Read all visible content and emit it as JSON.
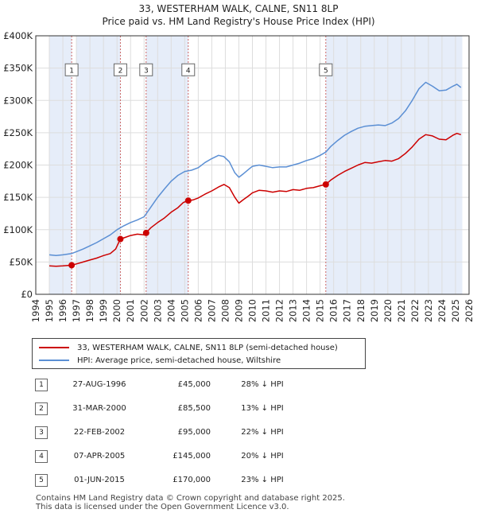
{
  "title_line1": "33, WESTERHAM WALK, CALNE, SN11 8LP",
  "title_line2": "Price paid vs. HM Land Registry's House Price Index (HPI)",
  "colors": {
    "red": "#cc0000",
    "blue": "#5b8fd4",
    "shade": "#e6edf9",
    "grid": "#dddddd",
    "marker_line": "#cc6666"
  },
  "chart_data": {
    "type": "line",
    "title": "33, WESTERHAM WALK, CALNE, SN11 8LP — Price paid vs. HM Land Registry's House Price Index (HPI)",
    "xlabel": "",
    "ylabel": "",
    "xlim": [
      1994,
      2026
    ],
    "ylim": [
      0,
      400000
    ],
    "y_ticks": [
      0,
      50000,
      100000,
      150000,
      200000,
      250000,
      300000,
      350000,
      400000
    ],
    "y_tick_labels": [
      "£0",
      "£50K",
      "£100K",
      "£150K",
      "£200K",
      "£250K",
      "£300K",
      "£350K",
      "£400K"
    ],
    "x_ticks": [
      1994,
      1995,
      1996,
      1997,
      1998,
      1999,
      2000,
      2001,
      2002,
      2003,
      2004,
      2005,
      2006,
      2007,
      2008,
      2009,
      2010,
      2011,
      2012,
      2013,
      2014,
      2015,
      2016,
      2017,
      2018,
      2019,
      2020,
      2021,
      2022,
      2023,
      2024,
      2025,
      2026
    ],
    "grid": true,
    "shaded_ranges": [
      [
        1995.0,
        1996.65
      ],
      [
        1997.0,
        2000.25
      ],
      [
        2002.15,
        2005.26
      ],
      [
        2015.42,
        2025.5
      ]
    ],
    "series": [
      {
        "name": "33, WESTERHAM WALK, CALNE, SN11 8LP (semi-detached house)",
        "color": "#cc0000",
        "x": [
          1995.0,
          1995.5,
          1996.0,
          1996.65,
          1997.0,
          1997.5,
          1998.0,
          1998.5,
          1999.0,
          1999.5,
          1999.9,
          2000.25,
          2000.6,
          2001.0,
          2001.5,
          2002.0,
          2002.15,
          2002.5,
          2003.0,
          2003.5,
          2004.0,
          2004.5,
          2004.9,
          2005.26,
          2005.6,
          2006.0,
          2006.5,
          2007.0,
          2007.5,
          2007.9,
          2008.3,
          2008.7,
          2009.0,
          2009.3,
          2009.7,
          2010.0,
          2010.5,
          2011.0,
          2011.5,
          2012.0,
          2012.5,
          2013.0,
          2013.5,
          2014.0,
          2014.5,
          2015.0,
          2015.42,
          2015.8,
          2016.3,
          2016.8,
          2017.3,
          2017.8,
          2018.3,
          2018.8,
          2019.3,
          2019.8,
          2020.3,
          2020.8,
          2021.3,
          2021.8,
          2022.3,
          2022.8,
          2023.3,
          2023.8,
          2024.3,
          2024.8,
          2025.1,
          2025.4
        ],
        "values": [
          44000,
          43500,
          44000,
          45000,
          47000,
          50000,
          53000,
          56000,
          60000,
          63000,
          70000,
          85500,
          88000,
          91000,
          93000,
          92000,
          95000,
          103000,
          111000,
          118000,
          127000,
          134000,
          142000,
          145000,
          146000,
          149000,
          155000,
          160000,
          166000,
          170000,
          165000,
          150000,
          141000,
          146000,
          152000,
          157000,
          161000,
          160000,
          158000,
          160000,
          159000,
          162000,
          161000,
          164000,
          165000,
          168000,
          170000,
          177000,
          184000,
          190000,
          195000,
          200000,
          204000,
          203000,
          205000,
          207000,
          206000,
          210000,
          218000,
          228000,
          240000,
          247000,
          245000,
          240000,
          239000,
          246000,
          249000,
          247000
        ]
      },
      {
        "name": "HPI: Average price, semi-detached house, Wiltshire",
        "color": "#5b8fd4",
        "x": [
          1995.0,
          1995.5,
          1996.0,
          1996.65,
          1997.0,
          1997.5,
          1998.0,
          1998.5,
          1999.0,
          1999.5,
          2000.0,
          2000.5,
          2001.0,
          2001.5,
          2002.0,
          2002.5,
          2003.0,
          2003.5,
          2004.0,
          2004.5,
          2005.0,
          2005.5,
          2006.0,
          2006.5,
          2007.0,
          2007.5,
          2007.9,
          2008.3,
          2008.7,
          2009.0,
          2009.3,
          2009.7,
          2010.0,
          2010.5,
          2011.0,
          2011.5,
          2012.0,
          2012.5,
          2013.0,
          2013.5,
          2014.0,
          2014.5,
          2015.0,
          2015.42,
          2015.8,
          2016.3,
          2016.8,
          2017.3,
          2017.8,
          2018.3,
          2018.8,
          2019.3,
          2019.8,
          2020.3,
          2020.8,
          2021.3,
          2021.8,
          2022.3,
          2022.8,
          2023.3,
          2023.8,
          2024.3,
          2024.8,
          2025.1,
          2025.4
        ],
        "values": [
          61000,
          60000,
          61000,
          63000,
          66000,
          70000,
          75000,
          80000,
          86000,
          92000,
          100000,
          106000,
          111000,
          115000,
          120000,
          135000,
          150000,
          163000,
          175000,
          184000,
          190000,
          192000,
          196000,
          204000,
          210000,
          215000,
          213000,
          205000,
          188000,
          181000,
          186000,
          193000,
          198000,
          200000,
          198000,
          196000,
          197000,
          197000,
          200000,
          203000,
          207000,
          210000,
          215000,
          220000,
          229000,
          238000,
          246000,
          252000,
          257000,
          260000,
          261000,
          262000,
          261000,
          265000,
          272000,
          284000,
          300000,
          318000,
          328000,
          322000,
          315000,
          316000,
          322000,
          325000,
          320000
        ]
      }
    ],
    "transactions": [
      {
        "label": "1",
        "x": 1996.65,
        "price": 45000
      },
      {
        "label": "2",
        "x": 2000.25,
        "price": 85500
      },
      {
        "label": "3",
        "x": 2002.15,
        "price": 95000
      },
      {
        "label": "4",
        "x": 2005.26,
        "price": 145000
      },
      {
        "label": "5",
        "x": 2015.42,
        "price": 170000
      }
    ],
    "marker_y_value": 348000
  },
  "legend": {
    "red_label": "33, WESTERHAM WALK, CALNE, SN11 8LP (semi-detached house)",
    "blue_label": "HPI: Average price, semi-detached house, Wiltshire"
  },
  "table": [
    {
      "num": "1",
      "date": "27-AUG-1996",
      "price": "£45,000",
      "diff": "28% ↓ HPI"
    },
    {
      "num": "2",
      "date": "31-MAR-2000",
      "price": "£85,500",
      "diff": "13% ↓ HPI"
    },
    {
      "num": "3",
      "date": "22-FEB-2002",
      "price": "£95,000",
      "diff": "22% ↓ HPI"
    },
    {
      "num": "4",
      "date": "07-APR-2005",
      "price": "£145,000",
      "diff": "20% ↓ HPI"
    },
    {
      "num": "5",
      "date": "01-JUN-2015",
      "price": "£170,000",
      "diff": "23% ↓ HPI"
    }
  ],
  "footer": {
    "line1": "Contains HM Land Registry data © Crown copyright and database right 2025.",
    "line2": "This data is licensed under the Open Government Licence v3.0."
  }
}
